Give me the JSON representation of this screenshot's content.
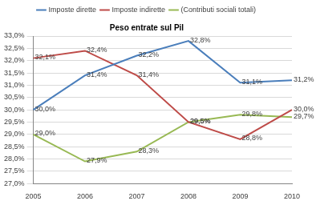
{
  "chart_data": {
    "type": "line",
    "title": "Peso entrate sul Pil",
    "categories": [
      "2005",
      "2006",
      "2007",
      "2008",
      "2009",
      "2010"
    ],
    "series": [
      {
        "name": "Imposte dirette",
        "color": "#4a7ebb",
        "values": [
          30.0,
          31.4,
          32.2,
          32.8,
          31.1,
          31.2
        ],
        "value_labels": [
          "30,0%",
          "31,4%",
          "32,2%",
          "32,8%",
          "31,1%",
          "31,2%"
        ]
      },
      {
        "name": "Imposte indirette",
        "color": "#be4b48",
        "values": [
          32.1,
          32.4,
          31.4,
          29.5,
          28.8,
          30.0
        ],
        "value_labels": [
          "32,1%",
          "32,4%",
          "31,4%",
          "29,5%",
          "28,8%",
          "30,0%"
        ]
      },
      {
        "name": "(Contributi sociali totali)",
        "color": "#98b954",
        "values": [
          29.0,
          27.9,
          28.3,
          29.5,
          29.8,
          29.7
        ],
        "value_labels": [
          "29,0%",
          "27,9%",
          "28,3%",
          "29,5%",
          "29,8%",
          "29,7%"
        ]
      }
    ],
    "ylim": [
      27.0,
      33.0
    ],
    "yticks": [
      {
        "value": 27.0,
        "label": "27,0%"
      },
      {
        "value": 27.5,
        "label": "27,5%"
      },
      {
        "value": 28.0,
        "label": "28,0%"
      },
      {
        "value": 28.5,
        "label": "28,5%"
      },
      {
        "value": 29.0,
        "label": "29,0%"
      },
      {
        "value": 29.5,
        "label": "29,5%"
      },
      {
        "value": 30.0,
        "label": "30,0%"
      },
      {
        "value": 30.5,
        "label": "30,5%"
      },
      {
        "value": 31.0,
        "label": "31,0%"
      },
      {
        "value": 31.5,
        "label": "31,5%"
      },
      {
        "value": 32.0,
        "label": "32,0%"
      },
      {
        "value": 32.5,
        "label": "32,5%"
      },
      {
        "value": 33.0,
        "label": "33,0%"
      }
    ],
    "grid": true,
    "legend": "top",
    "data_labels": true
  }
}
